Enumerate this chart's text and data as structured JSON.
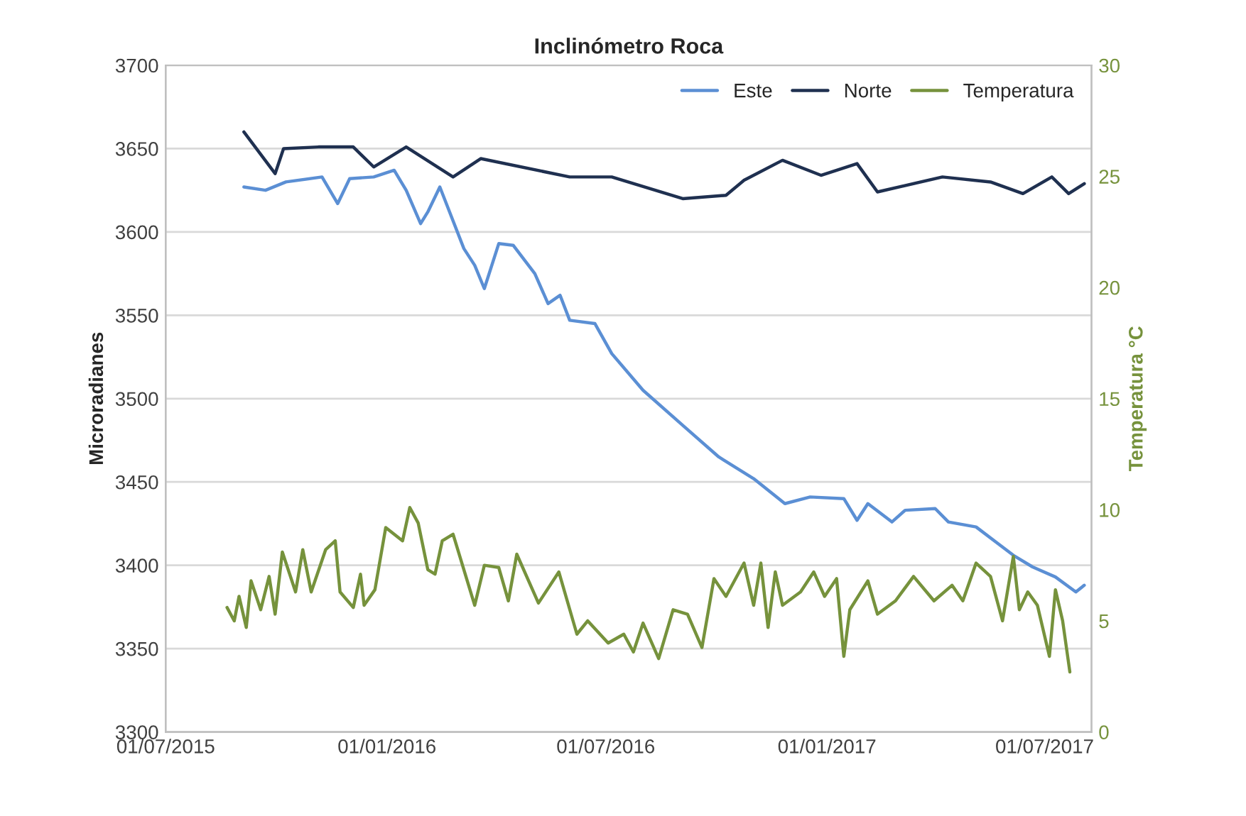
{
  "chart_data": {
    "type": "line",
    "title": "Inclinómetro Roca",
    "ylabel": "Microradianes",
    "y2label": "Temperatura °C",
    "xlim": [
      "2015-07-01",
      "2017-08-09"
    ],
    "xticks": [
      {
        "value": "2015-07-01",
        "label": "01/07/2015"
      },
      {
        "value": "2016-01-01",
        "label": "01/01/2016"
      },
      {
        "value": "2016-07-01",
        "label": "01/07/2016"
      },
      {
        "value": "2017-01-01",
        "label": "01/01/2017"
      },
      {
        "value": "2017-07-01",
        "label": "01/07/2017"
      }
    ],
    "ylim": [
      3300,
      3700
    ],
    "yticks": [
      3300,
      3350,
      3400,
      3450,
      3500,
      3550,
      3600,
      3650,
      3700
    ],
    "y2lim": [
      0,
      30
    ],
    "y2ticks": [
      0,
      5,
      10,
      15,
      20,
      25,
      30
    ],
    "grid": "y",
    "legend": "top right",
    "marker": "none",
    "line_style": "solid",
    "series": [
      {
        "name": "Este",
        "color": "#5b8fd4",
        "x": [
          "2015-09-04",
          "2015-09-22",
          "2015-10-09",
          "2015-11-08",
          "2015-11-21",
          "2015-12-01",
          "2015-12-21",
          "2016-01-07",
          "2016-01-17",
          "2016-01-29",
          "2016-02-04",
          "2016-02-14",
          "2016-03-05",
          "2016-03-14",
          "2016-03-22",
          "2016-04-03",
          "2016-04-15",
          "2016-05-03",
          "2016-05-14",
          "2016-05-24",
          "2016-06-01",
          "2016-06-22",
          "2016-07-06",
          "2016-08-01",
          "2016-09-03",
          "2016-10-03",
          "2016-11-01",
          "2016-11-27",
          "2016-12-18",
          "2017-01-15",
          "2017-01-26",
          "2017-02-04",
          "2017-02-24",
          "2017-03-07",
          "2017-04-01",
          "2017-04-12",
          "2017-05-05",
          "2017-06-05",
          "2017-06-21",
          "2017-07-10",
          "2017-07-27",
          "2017-08-03"
        ],
        "values": [
          3627,
          3625,
          3630,
          3633,
          3617,
          3632,
          3633,
          3637,
          3625,
          3605,
          3612,
          3627,
          3590,
          3580,
          3566,
          3593,
          3592,
          3575,
          3557,
          3562,
          3547,
          3545,
          3527,
          3505,
          3484,
          3465,
          3452,
          3437,
          3441,
          3440,
          3427,
          3437,
          3426,
          3433,
          3434,
          3426,
          3423,
          3406,
          3399,
          3393,
          3384,
          3388
        ]
      },
      {
        "name": "Norte",
        "color": "#1f3050",
        "x": [
          "2015-09-04",
          "2015-09-30",
          "2015-10-07",
          "2015-11-05",
          "2015-12-04",
          "2015-12-21",
          "2016-01-17",
          "2016-02-25",
          "2016-03-19",
          "2016-06-01",
          "2016-07-06",
          "2016-09-03",
          "2016-10-09",
          "2016-10-24",
          "2016-11-25",
          "2016-12-27",
          "2017-01-26",
          "2017-02-12",
          "2017-04-07",
          "2017-05-17",
          "2017-06-13",
          "2017-07-07",
          "2017-07-21",
          "2017-08-03"
        ],
        "values": [
          3660,
          3635,
          3650,
          3651,
          3651,
          3639,
          3651,
          3633,
          3644,
          3633,
          3633,
          3620,
          3622,
          3631,
          3643,
          3634,
          3641,
          3624,
          3633,
          3630,
          3623,
          3633,
          3623,
          3629
        ]
      },
      {
        "name": "Temperatura",
        "color": "#76923c",
        "axis": "y2",
        "x": [
          "2015-08-21",
          "2015-08-27",
          "2015-08-31",
          "2015-09-06",
          "2015-09-10",
          "2015-09-18",
          "2015-09-25",
          "2015-09-30",
          "2015-10-06",
          "2015-10-17",
          "2015-10-23",
          "2015-10-30",
          "2015-11-11",
          "2015-11-19",
          "2015-11-23",
          "2015-12-04",
          "2015-12-10",
          "2015-12-13",
          "2015-12-22",
          "2015-12-31",
          "2016-01-14",
          "2016-01-20",
          "2016-01-27",
          "2016-02-04",
          "2016-02-10",
          "2016-02-16",
          "2016-02-25",
          "2016-03-14",
          "2016-03-22",
          "2016-04-03",
          "2016-04-11",
          "2016-04-18",
          "2016-05-06",
          "2016-05-23",
          "2016-06-07",
          "2016-06-16",
          "2016-07-03",
          "2016-07-16",
          "2016-07-24",
          "2016-08-01",
          "2016-08-14",
          "2016-08-26",
          "2016-09-07",
          "2016-09-19",
          "2016-09-29",
          "2016-10-09",
          "2016-10-24",
          "2016-11-01",
          "2016-11-07",
          "2016-11-13",
          "2016-11-19",
          "2016-11-25",
          "2016-12-10",
          "2016-12-21",
          "2016-12-30",
          "2017-01-09",
          "2017-01-15",
          "2017-01-20",
          "2017-02-04",
          "2017-02-12",
          "2017-02-27",
          "2017-03-14",
          "2017-03-31",
          "2017-04-15",
          "2017-04-24",
          "2017-05-05",
          "2017-05-17",
          "2017-05-27",
          "2017-06-05",
          "2017-06-10",
          "2017-06-17",
          "2017-06-25",
          "2017-07-05",
          "2017-07-10",
          "2017-07-16",
          "2017-07-22"
        ],
        "values": [
          5.6,
          5.0,
          6.1,
          4.7,
          6.8,
          5.5,
          7.0,
          5.3,
          8.1,
          6.3,
          8.2,
          6.3,
          8.2,
          8.6,
          6.3,
          5.6,
          7.1,
          5.7,
          6.4,
          9.2,
          8.6,
          10.1,
          9.4,
          7.3,
          7.1,
          8.6,
          8.9,
          5.7,
          7.5,
          7.4,
          5.9,
          8.0,
          5.8,
          7.2,
          4.4,
          5.0,
          4.0,
          4.4,
          3.6,
          4.9,
          3.3,
          5.5,
          5.3,
          3.8,
          6.9,
          6.1,
          7.6,
          5.7,
          7.6,
          4.7,
          7.2,
          5.7,
          6.3,
          7.2,
          6.1,
          6.9,
          3.4,
          5.5,
          6.8,
          5.3,
          5.9,
          7.0,
          5.9,
          6.6,
          5.9,
          7.6,
          7.0,
          5.0,
          7.9,
          5.5,
          6.3,
          5.7,
          3.4,
          6.4,
          5.0,
          2.7
        ]
      }
    ]
  }
}
